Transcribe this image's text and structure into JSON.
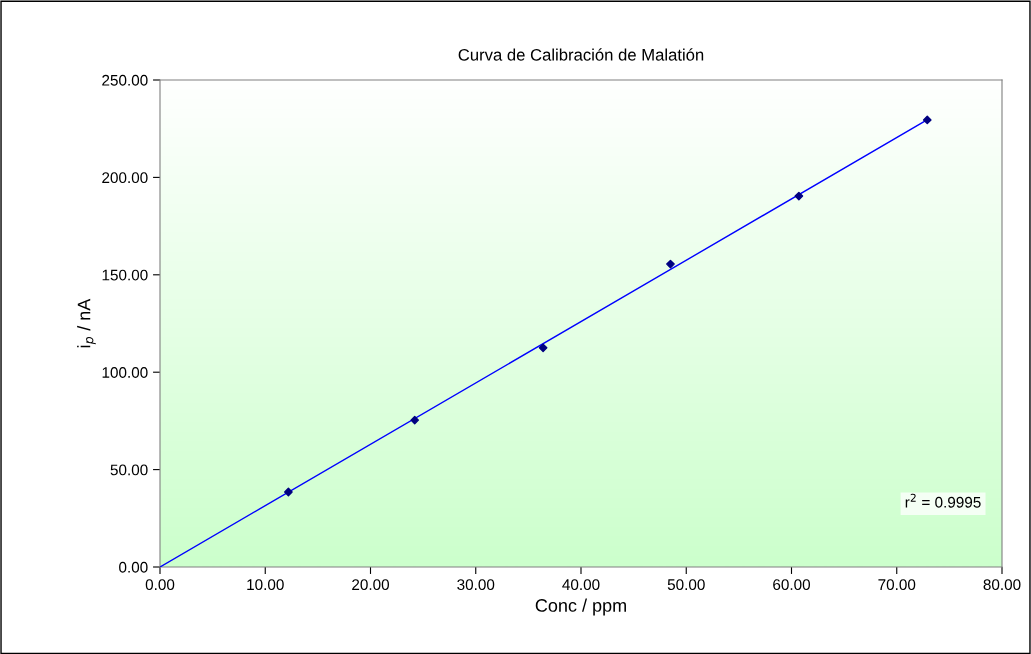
{
  "chart_data": {
    "type": "scatter",
    "title": "Curva de Calibración de Malatión",
    "xlabel": "Conc / ppm",
    "ylabel": "i$_{p}$ / nA",
    "annotations": [
      "r$^{2}$ = 0.9995"
    ],
    "xlim": [
      0,
      80
    ],
    "ylim": [
      0,
      250
    ],
    "xticks": [
      {
        "value": 0,
        "label": "0.00"
      },
      {
        "value": 10,
        "label": "10.00"
      },
      {
        "value": 20,
        "label": "20.00"
      },
      {
        "value": 30,
        "label": "30.00"
      },
      {
        "value": 40,
        "label": "40.00"
      },
      {
        "value": 50,
        "label": "50.00"
      },
      {
        "value": 60,
        "label": "60.00"
      },
      {
        "value": 70,
        "label": "70.00"
      },
      {
        "value": 80,
        "label": "80.00"
      }
    ],
    "yticks": [
      {
        "value": 0,
        "label": "0.00"
      },
      {
        "value": 50,
        "label": "50.00"
      },
      {
        "value": 100,
        "label": "100.00"
      },
      {
        "value": 150,
        "label": "150.00"
      },
      {
        "value": 200,
        "label": "200.00"
      },
      {
        "value": 250,
        "label": "250.00"
      }
    ],
    "grid": false,
    "marker": "diamond",
    "series": [
      {
        "color": "#000080",
        "x": [
          12.2,
          24.2,
          36.4,
          48.5,
          60.7,
          72.9
        ],
        "values": [
          38.5,
          75.4,
          112.5,
          155.5,
          190.4,
          229.5
        ]
      },
      {
        "type": "line",
        "color": "#0000ff",
        "x": [
          0,
          72.9
        ],
        "values": [
          0,
          229.6
        ],
        "marker": "none",
        "line_style": "solid"
      }
    ]
  }
}
